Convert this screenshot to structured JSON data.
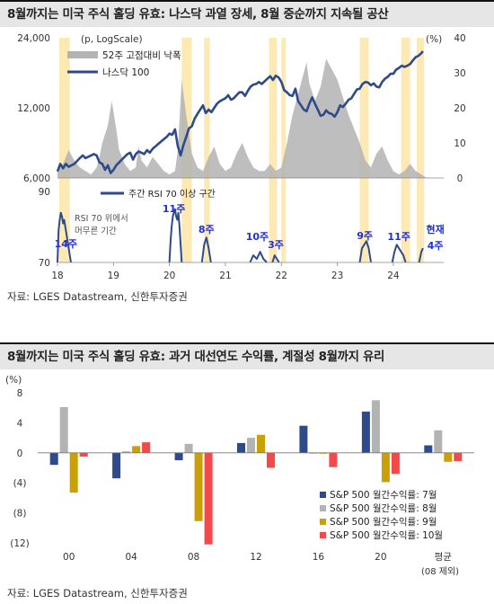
{
  "title1": "8월까지는 미국 주식 홀딩 유효: 나스닥 과열 장세, 8월 중순까지 지속될 공산",
  "title2": "8월까지는 미국 주식 홀딩 유효: 과거 대선연도 수익률, 계절성 8월까지 유리",
  "source1": "자료: LGES Datastream, 신한투자증권",
  "source2": "자료: LGES Datastream, 신한투자증권",
  "colors": {
    "nasdaq_line": "#2e4a8a",
    "drawdown_area": "#b3b3b3",
    "highlight": "#fde9b4",
    "rsi_line": "#2e4a8a",
    "annotation": "#1f2fd8",
    "bar_jul": "#2e4a8a",
    "bar_aug": "#b3b3b3",
    "bar_sep": "#c9a008",
    "bar_oct": "#f24a4a"
  },
  "chart_data": [
    {
      "type": "line",
      "left_unit": "(p, LogScale)",
      "right_unit": "(%)",
      "left_ticks": [
        "24,000",
        "12,000",
        "6,000"
      ],
      "left_tick_values": [
        24000,
        12000,
        6000
      ],
      "left_scale": "log",
      "left_range": [
        6000,
        24000
      ],
      "right_ticks": [
        "40",
        "30",
        "20",
        "10",
        "0"
      ],
      "right_tick_values": [
        40,
        30,
        20,
        10,
        0
      ],
      "right_range": [
        0,
        40
      ],
      "x_ticks": [
        "18",
        "19",
        "20",
        "21",
        "22",
        "23",
        "24"
      ],
      "x_range": [
        2018.0,
        2024.9
      ],
      "highlight_periods": [
        [
          2018.03,
          2018.22
        ],
        [
          2020.22,
          2020.4
        ],
        [
          2020.62,
          2020.72
        ],
        [
          2021.78,
          2021.92
        ],
        [
          2022.0,
          2022.08
        ],
        [
          2023.4,
          2023.56
        ],
        [
          2024.14,
          2024.3
        ],
        [
          2024.42,
          2024.55
        ]
      ],
      "series": [
        {
          "name": "52주 고점대비 낙폭",
          "axis": "right",
          "style": "area",
          "x": [
            2018.0,
            2018.1,
            2018.2,
            2018.3,
            2018.4,
            2018.5,
            2018.6,
            2018.7,
            2018.75,
            2018.8,
            2018.9,
            2018.97,
            2019.05,
            2019.1,
            2019.2,
            2019.3,
            2019.4,
            2019.45,
            2019.5,
            2019.6,
            2019.7,
            2019.8,
            2019.9,
            2020.0,
            2020.1,
            2020.15,
            2020.22,
            2020.3,
            2020.4,
            2020.5,
            2020.6,
            2020.7,
            2020.8,
            2020.9,
            2021.0,
            2021.1,
            2021.2,
            2021.3,
            2021.4,
            2021.5,
            2021.6,
            2021.7,
            2021.8,
            2021.9,
            2022.0,
            2022.1,
            2022.2,
            2022.3,
            2022.4,
            2022.45,
            2022.5,
            2022.6,
            2022.7,
            2022.8,
            2022.9,
            2023.0,
            2023.1,
            2023.2,
            2023.3,
            2023.4,
            2023.5,
            2023.6,
            2023.7,
            2023.8,
            2023.9,
            2024.0,
            2024.1,
            2024.2,
            2024.3,
            2024.4,
            2024.5,
            2024.6,
            2024.7
          ],
          "values": [
            2,
            4,
            8,
            5,
            3,
            2,
            1,
            3,
            6,
            10,
            15,
            22,
            14,
            8,
            4,
            2,
            3,
            9,
            5,
            3,
            6,
            4,
            2,
            1,
            2,
            8,
            28,
            18,
            7,
            3,
            2,
            6,
            9,
            4,
            2,
            3,
            7,
            10,
            6,
            3,
            2,
            2,
            4,
            2,
            3,
            10,
            18,
            24,
            30,
            33,
            27,
            22,
            26,
            34,
            31,
            28,
            23,
            18,
            14,
            10,
            5,
            3,
            7,
            9,
            5,
            2,
            1,
            2,
            4,
            2,
            1,
            0,
            0
          ]
        },
        {
          "name": "나스닥 100",
          "axis": "left",
          "style": "line",
          "x": [
            2018.0,
            2018.05,
            2018.1,
            2018.15,
            2018.2,
            2018.25,
            2018.3,
            2018.35,
            2018.4,
            2018.45,
            2018.5,
            2018.55,
            2018.6,
            2018.65,
            2018.7,
            2018.75,
            2018.8,
            2018.85,
            2018.9,
            2018.95,
            2019.0,
            2019.05,
            2019.1,
            2019.15,
            2019.2,
            2019.25,
            2019.3,
            2019.35,
            2019.4,
            2019.45,
            2019.5,
            2019.55,
            2019.6,
            2019.65,
            2019.7,
            2019.75,
            2019.8,
            2019.85,
            2019.9,
            2019.95,
            2020.0,
            2020.05,
            2020.1,
            2020.15,
            2020.2,
            2020.25,
            2020.3,
            2020.35,
            2020.4,
            2020.45,
            2020.5,
            2020.55,
            2020.6,
            2020.65,
            2020.7,
            2020.75,
            2020.8,
            2020.85,
            2020.9,
            2020.95,
            2021.0,
            2021.05,
            2021.1,
            2021.15,
            2021.2,
            2021.25,
            2021.3,
            2021.35,
            2021.4,
            2021.45,
            2021.5,
            2021.55,
            2021.6,
            2021.65,
            2021.7,
            2021.75,
            2021.8,
            2021.85,
            2021.9,
            2021.95,
            2022.0,
            2022.05,
            2022.1,
            2022.15,
            2022.2,
            2022.25,
            2022.3,
            2022.35,
            2022.4,
            2022.45,
            2022.5,
            2022.55,
            2022.6,
            2022.65,
            2022.7,
            2022.75,
            2022.8,
            2022.85,
            2022.9,
            2022.95,
            2023.0,
            2023.05,
            2023.1,
            2023.15,
            2023.2,
            2023.25,
            2023.3,
            2023.35,
            2023.4,
            2023.45,
            2023.5,
            2023.55,
            2023.6,
            2023.65,
            2023.7,
            2023.75,
            2023.8,
            2023.85,
            2023.9,
            2023.95,
            2024.0,
            2024.05,
            2024.1,
            2024.15,
            2024.2,
            2024.25,
            2024.3,
            2024.35,
            2024.4,
            2024.45,
            2024.5,
            2024.53
          ],
          "values": [
            6400,
            6900,
            6600,
            6900,
            6700,
            6800,
            6900,
            7100,
            7300,
            7500,
            7300,
            7400,
            7500,
            7600,
            7500,
            7000,
            6900,
            6500,
            6800,
            6300,
            6500,
            6800,
            7000,
            7200,
            7400,
            7600,
            7700,
            7200,
            7600,
            7800,
            7700,
            7600,
            7900,
            7700,
            8000,
            8200,
            8400,
            8600,
            8800,
            9000,
            9300,
            9200,
            9700,
            8200,
            7500,
            8300,
            9000,
            9800,
            10000,
            10800,
            11300,
            11800,
            12300,
            11400,
            11800,
            11500,
            12000,
            12500,
            12800,
            13000,
            13200,
            13600,
            13000,
            13200,
            13600,
            14000,
            14000,
            13500,
            14200,
            14800,
            15100,
            15200,
            15500,
            15200,
            15600,
            16000,
            16400,
            15800,
            16500,
            16200,
            15500,
            14300,
            14000,
            13600,
            13500,
            14500,
            12800,
            12300,
            11800,
            11600,
            12500,
            13300,
            12500,
            11800,
            11100,
            11200,
            11700,
            11400,
            11300,
            11000,
            11500,
            12300,
            12100,
            12500,
            13000,
            13200,
            13800,
            14400,
            14500,
            15200,
            15500,
            15400,
            15000,
            15300,
            14800,
            14700,
            15500,
            16000,
            16300,
            16800,
            16800,
            17500,
            17800,
            18200,
            18000,
            18200,
            18500,
            19200,
            19800,
            20100,
            20600,
            21000
          ]
        }
      ],
      "legend": [
        "52주 고점대비 낙폭",
        "나스닥 100"
      ],
      "legend_position": "top-left"
    },
    {
      "type": "line",
      "y_ticks": [
        "90",
        "70"
      ],
      "y_range": [
        70,
        90
      ],
      "x_range": [
        2018.0,
        2024.9
      ],
      "legend": [
        "주간 RSI 70 이상 구간"
      ],
      "note": [
        "RSI 70 위에서",
        "머무른 기간"
      ],
      "series": [
        {
          "name": "주간 RSI 70 이상 구간",
          "segments": [
            {
              "x": [
                2018.0,
                2018.02,
                2018.04,
                2018.06,
                2018.08,
                2018.1,
                2018.12,
                2018.14,
                2018.16,
                2018.18,
                2018.2,
                2018.22,
                2018.24
              ],
              "values": [
                70,
                79,
                82,
                84,
                83,
                81,
                82,
                80,
                78,
                76,
                74,
                72,
                70
              ]
            },
            {
              "x": [
                2020.0,
                2020.02,
                2020.04,
                2020.06,
                2020.08,
                2020.1,
                2020.12,
                2020.14,
                2020.16,
                2020.18,
                2020.2,
                2020.22
              ],
              "values": [
                70,
                76,
                80,
                83,
                84,
                85,
                83,
                82,
                84,
                80,
                75,
                70
              ]
            },
            {
              "x": [
                2020.58,
                2020.62,
                2020.66,
                2020.7,
                2020.74
              ],
              "values": [
                70,
                75,
                77,
                74,
                70
              ]
            },
            {
              "x": [
                2021.44,
                2021.5,
                2021.56,
                2021.62,
                2021.68,
                2021.74
              ],
              "values": [
                70,
                72,
                71,
                73,
                71,
                70
              ]
            },
            {
              "x": [
                2021.84,
                2021.88,
                2021.92,
                2021.96
              ],
              "values": [
                70,
                72,
                71,
                70
              ]
            },
            {
              "x": [
                2023.4,
                2023.44,
                2023.48,
                2023.52,
                2023.56,
                2023.6
              ],
              "values": [
                70,
                74,
                75,
                76,
                74,
                70
              ]
            },
            {
              "x": [
                2023.98,
                2024.02,
                2024.06,
                2024.1,
                2024.14,
                2024.18,
                2024.22
              ],
              "values": [
                70,
                73,
                75,
                74,
                73,
                72,
                70
              ]
            },
            {
              "x": [
                2024.46,
                2024.5,
                2024.53
              ],
              "values": [
                70,
                73,
                74
              ]
            }
          ]
        }
      ],
      "annotations": [
        {
          "text": "14주",
          "x": 2018.15
        },
        {
          "text": "11주",
          "x": 2020.08
        },
        {
          "text": "8주",
          "x": 2020.66
        },
        {
          "text": "10주",
          "x": 2021.57
        },
        {
          "text": "3주",
          "x": 2021.9
        },
        {
          "text": "9주",
          "x": 2023.49
        },
        {
          "text": "11주",
          "x": 2024.1
        },
        {
          "text": "현재",
          "x": 2024.75
        },
        {
          "text": "4주",
          "x": 2024.75
        }
      ]
    },
    {
      "type": "bar",
      "unit": "(%)",
      "categories": [
        "00",
        "04",
        "08",
        "12",
        "16",
        "20",
        "평균"
      ],
      "category_note": "(08 제외)",
      "y_ticks": [
        "8",
        "4",
        "0",
        "(4)",
        "(8)",
        "(12)"
      ],
      "y_tick_values": [
        8,
        4,
        0,
        -4,
        -8,
        -12
      ],
      "ylim": [
        -12,
        8
      ],
      "series": [
        {
          "name": "S&P 500 월간수익률: 7월",
          "values": [
            -1.6,
            -3.4,
            -1.0,
            1.3,
            3.6,
            5.5,
            1.0
          ]
        },
        {
          "name": "S&P 500 월간수익률: 8월",
          "values": [
            6.1,
            0.2,
            1.2,
            2.0,
            -0.1,
            7.0,
            3.0
          ]
        },
        {
          "name": "S&P 500 월간수익률: 9월",
          "values": [
            -5.3,
            0.9,
            -9.1,
            2.4,
            -0.1,
            -3.9,
            -1.2
          ]
        },
        {
          "name": "S&P 500 월간수익률: 10월",
          "values": [
            -0.5,
            1.4,
            -12.2,
            -2.0,
            -1.9,
            -2.8,
            -1.1
          ]
        }
      ],
      "legend_position": "bottom-right"
    }
  ]
}
